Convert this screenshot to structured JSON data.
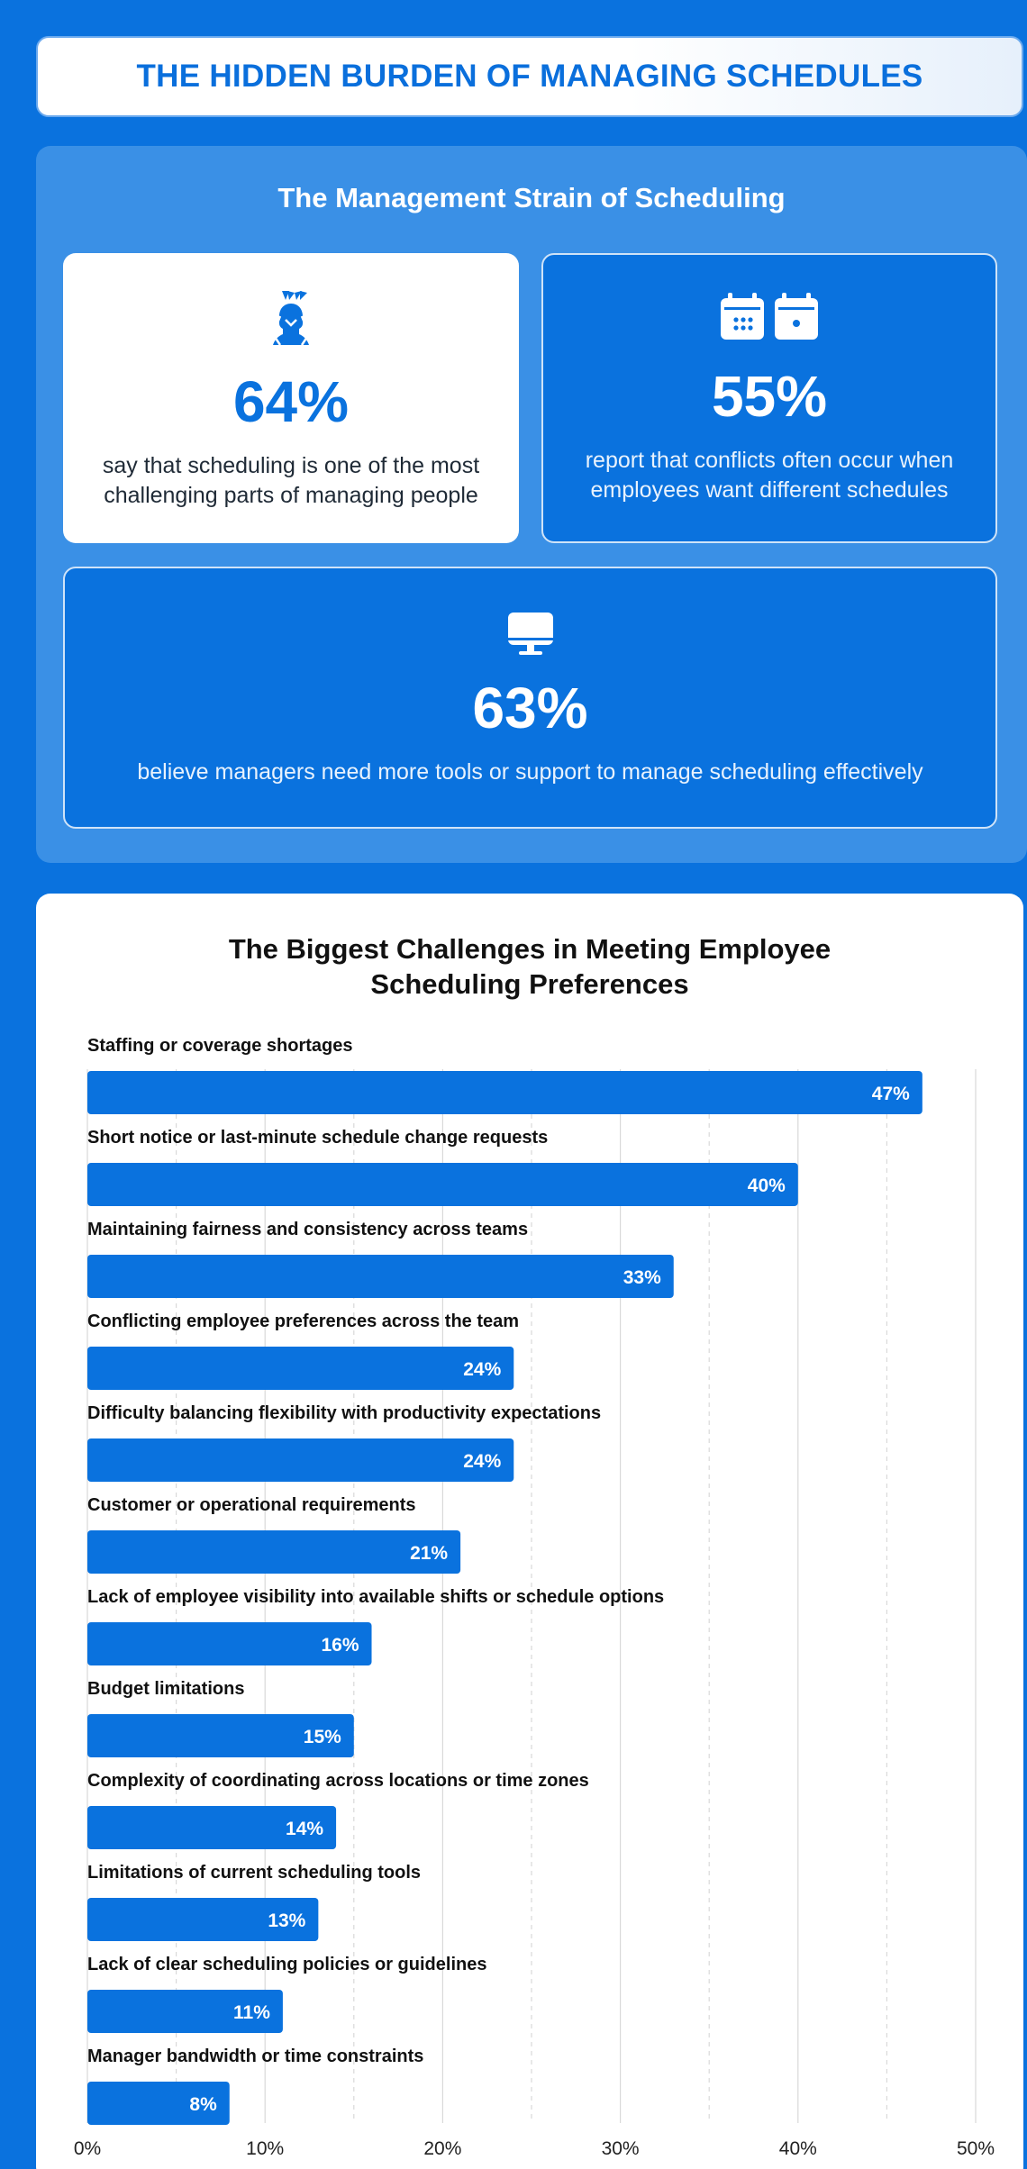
{
  "header": {
    "title": "THE HIDDEN BURDEN OF MANAGING SCHEDULES"
  },
  "strain": {
    "title": "The Management Strain of Scheduling",
    "cards": [
      {
        "icon": "stressed-person-icon",
        "value": "64%",
        "text": "say that scheduling is one of the most challenging parts of managing people"
      },
      {
        "icon": "calendars-icon",
        "value": "55%",
        "text": "report that conflicts often occur when employees want different schedules"
      },
      {
        "icon": "monitor-icon",
        "value": "63%",
        "text": "believe managers need more tools or support to manage scheduling effectively"
      }
    ]
  },
  "colors": {
    "accent": "#0a72de",
    "panel": "#3a90e6",
    "white": "#ffffff"
  },
  "chart_data": {
    "type": "bar",
    "orientation": "horizontal",
    "title": "The Biggest Challenges in Meeting Employee Scheduling Preferences",
    "title_lines": [
      "The Biggest Challenges in Meeting Employee",
      "Scheduling Preferences"
    ],
    "categories": [
      "Staffing or coverage shortages",
      "Short notice or last-minute schedule change requests",
      "Maintaining fairness and consistency across teams",
      "Conflicting employee preferences across the team",
      "Difficulty balancing flexibility with productivity expectations",
      "Customer or operational requirements",
      "Lack of employee visibility into available shifts or schedule options",
      "Budget limitations",
      "Complexity of coordinating across locations or time zones",
      "Limitations of current scheduling tools",
      "Lack of clear scheduling policies or guidelines",
      "Manager bandwidth or time constraints"
    ],
    "values": [
      47,
      40,
      33,
      24,
      24,
      21,
      16,
      15,
      14,
      13,
      11,
      8
    ],
    "value_labels": [
      "47%",
      "40%",
      "33%",
      "24%",
      "24%",
      "21%",
      "16%",
      "15%",
      "14%",
      "13%",
      "11%",
      "8%"
    ],
    "xlim": [
      0,
      50
    ],
    "xticks": [
      0,
      10,
      20,
      30,
      40,
      50
    ],
    "xtick_labels": [
      "0%",
      "10%",
      "20%",
      "30%",
      "40%",
      "50%"
    ],
    "grid": true,
    "xlabel": "",
    "ylabel": ""
  }
}
